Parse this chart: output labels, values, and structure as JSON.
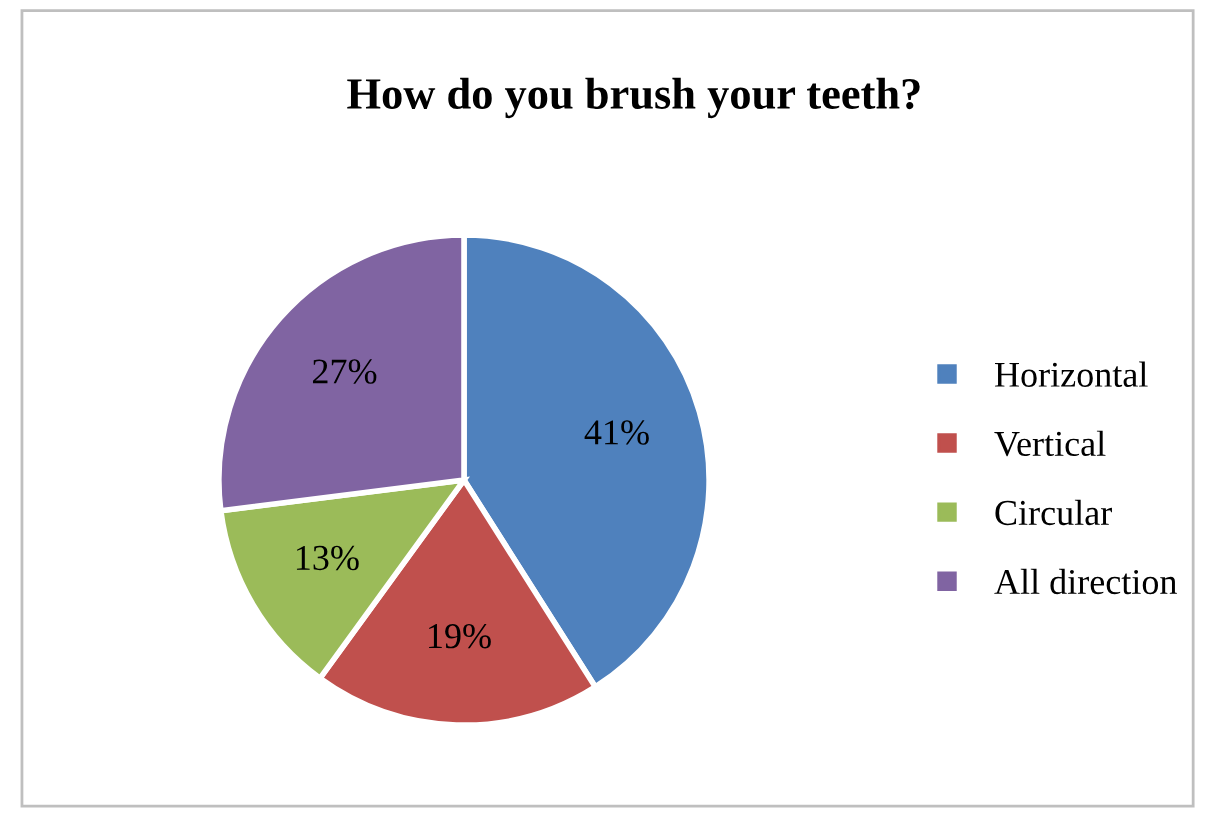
{
  "chart_data": {
    "type": "pie",
    "title": "How do you brush your teeth?",
    "categories": [
      "Horizontal",
      "Vertical",
      "Circular",
      "All direction"
    ],
    "values": [
      41,
      19,
      13,
      27
    ],
    "colors": [
      "#4f81bd",
      "#c0504d",
      "#9bbb59",
      "#8064a2"
    ],
    "value_labels": [
      "41%",
      "19%",
      "13%",
      "27%"
    ],
    "legend": "right"
  }
}
